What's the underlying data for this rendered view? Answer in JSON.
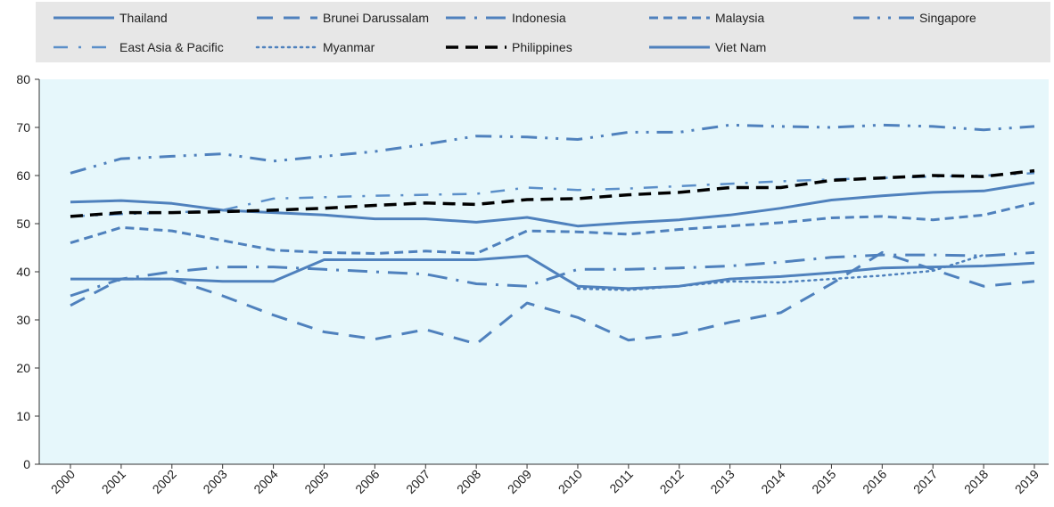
{
  "chart_data": {
    "type": "line",
    "title": "",
    "xlabel": "",
    "ylabel": "",
    "x": [
      "2000",
      "2001",
      "2002",
      "2003",
      "2004",
      "2005",
      "2006",
      "2007",
      "2008",
      "2009",
      "2010",
      "2011",
      "2012",
      "2013",
      "2014",
      "2015",
      "2016",
      "2017",
      "2018",
      "2019"
    ],
    "ylim": [
      0,
      80
    ],
    "yticks": [
      0,
      10,
      20,
      30,
      40,
      50,
      60,
      70,
      80
    ],
    "grid": false,
    "legend_position": "top",
    "background_color": "#e6f7fb",
    "legend_background": "#e7e7e7",
    "series": [
      {
        "name": "Thailand",
        "style": "solid",
        "color": "#4f81bd",
        "values": [
          54.5,
          54.8,
          54.2,
          52.8,
          52.3,
          51.8,
          51.0,
          51.0,
          50.3,
          51.3,
          49.5,
          50.2,
          50.8,
          51.8,
          53.2,
          54.9,
          55.8,
          56.5,
          56.8,
          58.5
        ]
      },
      {
        "name": "Brunei Darussalam",
        "style": "longdash",
        "color": "#4f81bd",
        "values": [
          33.0,
          38.5,
          38.5,
          35.0,
          31.0,
          27.5,
          26.0,
          28.0,
          25.0,
          33.5,
          30.5,
          25.8,
          27.0,
          29.5,
          31.5,
          37.5,
          44.0,
          40.5,
          37.0,
          38.0
        ]
      },
      {
        "name": "Indonesia",
        "style": "dashdot",
        "color": "#4f81bd",
        "values": [
          35.0,
          38.5,
          40.0,
          41.0,
          41.0,
          40.5,
          40.0,
          39.5,
          37.5,
          37.0,
          40.5,
          40.5,
          40.8,
          41.2,
          42.0,
          43.0,
          43.5,
          43.5,
          43.3,
          44.0
        ]
      },
      {
        "name": "Malaysia",
        "style": "dash",
        "color": "#4f81bd",
        "values": [
          46.0,
          49.2,
          48.5,
          46.5,
          44.5,
          44.0,
          43.8,
          44.3,
          43.8,
          48.5,
          48.3,
          47.8,
          48.8,
          49.5,
          50.2,
          51.2,
          51.5,
          50.8,
          51.8,
          54.3
        ]
      },
      {
        "name": "Singapore",
        "style": "dashdotdot",
        "color": "#4f81bd",
        "values": [
          60.5,
          63.5,
          64.0,
          64.5,
          63.0,
          64.0,
          65.0,
          66.5,
          68.2,
          68.0,
          67.5,
          69.0,
          69.0,
          70.5,
          70.2,
          70.0,
          70.5,
          70.2,
          69.5,
          70.2
        ]
      },
      {
        "name": "East Asia & Pacific",
        "style": "dashdot-light",
        "color": "#5b8fc9",
        "values": [
          51.5,
          52.0,
          52.3,
          52.8,
          55.2,
          55.5,
          55.8,
          56.0,
          56.2,
          57.5,
          57.0,
          57.3,
          57.8,
          58.3,
          58.8,
          59.2,
          59.5,
          59.8,
          60.0,
          60.5
        ]
      },
      {
        "name": "Myanmar",
        "style": "dotted",
        "color": "#4f81bd",
        "values": [
          null,
          null,
          null,
          null,
          null,
          null,
          null,
          null,
          null,
          null,
          36.5,
          36.2,
          37.0,
          38.0,
          37.8,
          38.5,
          39.2,
          40.2,
          43.5,
          null
        ]
      },
      {
        "name": "Philippines",
        "style": "blackdash",
        "color": "#000000",
        "values": [
          51.5,
          52.3,
          52.3,
          52.5,
          52.8,
          53.2,
          53.8,
          54.3,
          54.0,
          55.0,
          55.2,
          56.0,
          56.5,
          57.5,
          57.5,
          59.0,
          59.5,
          60.0,
          59.8,
          61.0
        ]
      },
      {
        "name": "Viet Nam",
        "style": "solid",
        "color": "#4f81bd",
        "values": [
          38.5,
          38.5,
          38.5,
          38.0,
          38.0,
          42.5,
          42.5,
          42.5,
          42.5,
          43.3,
          37.0,
          36.5,
          37.0,
          38.5,
          39.0,
          39.8,
          40.8,
          41.0,
          41.2,
          41.8
        ]
      }
    ]
  }
}
